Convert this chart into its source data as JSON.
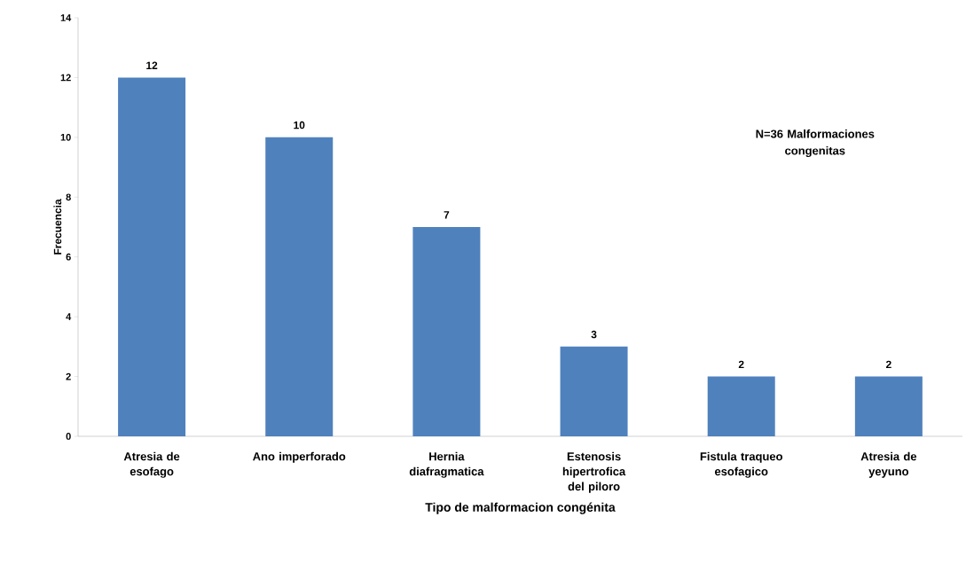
{
  "chart_data": {
    "type": "bar",
    "xlabel": "Tipo de malformacion congénita",
    "ylabel": "Frecuencia",
    "categories": [
      "Atresia de esofago",
      "Ano imperforado",
      "Hernia diafragmatica",
      "Estenosis hipertrofica del piloro",
      "Fistula traqueo esofagico",
      "Atresia de yeyuno"
    ],
    "values": [
      12,
      10,
      7,
      3,
      2,
      2
    ],
    "color": "#4f81bd",
    "ylim": [
      0,
      14
    ],
    "yticks": [
      0,
      2,
      4,
      6,
      8,
      10,
      12,
      14
    ],
    "data_labels": true,
    "grid": false,
    "annotations": [
      "N=36 Malformaciones congenitas"
    ]
  }
}
